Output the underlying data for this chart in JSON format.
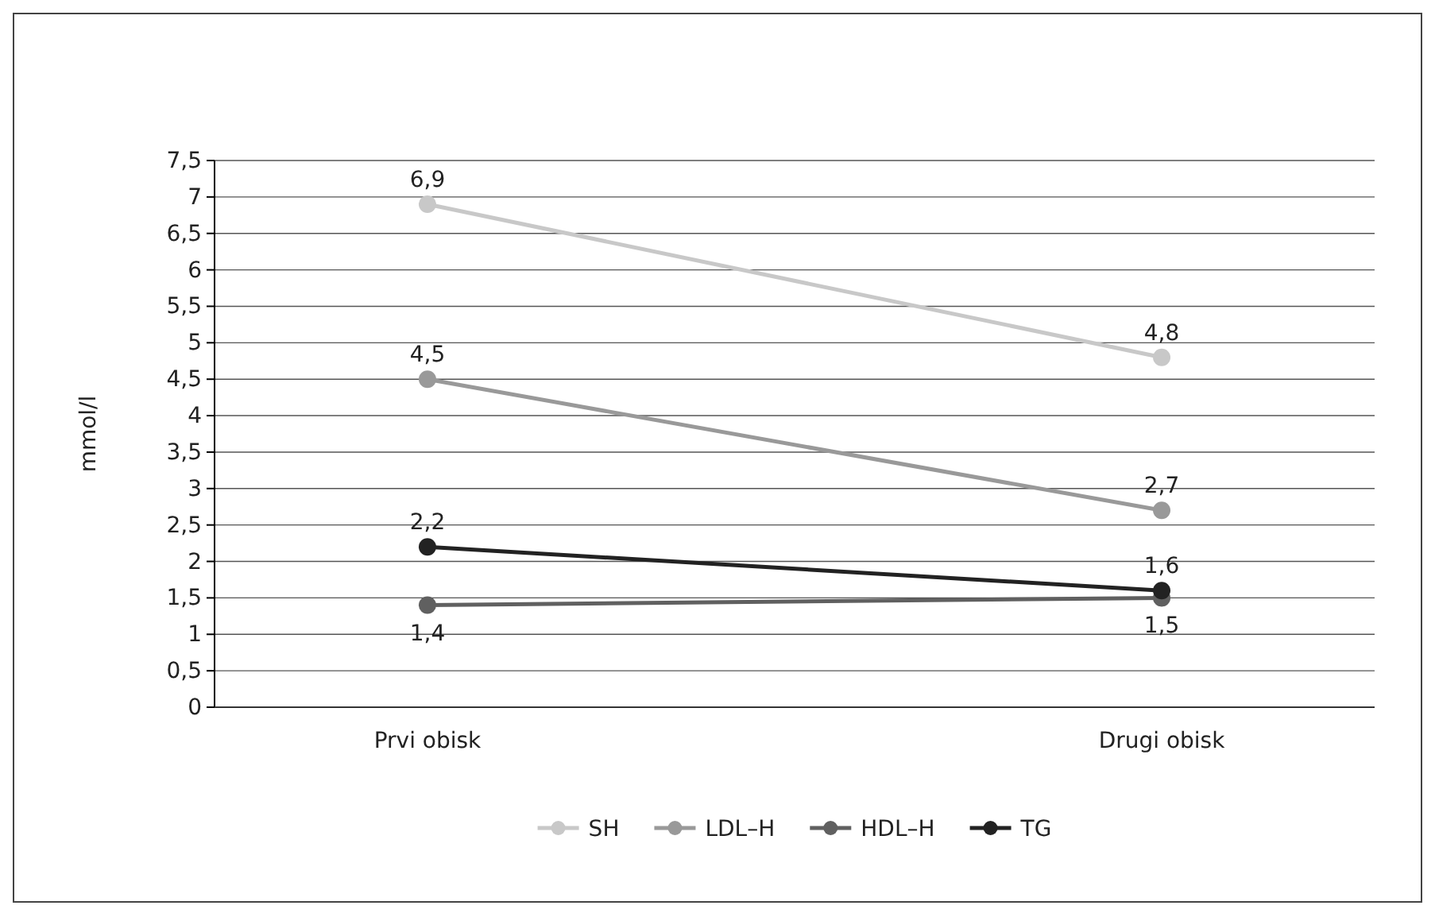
{
  "chart_data": {
    "type": "line",
    "ylabel": "mmol/l",
    "categories": [
      "Prvi obisk",
      "Drugi obisk"
    ],
    "series": [
      {
        "name": "SH",
        "color": "#c8c8c8",
        "values": [
          6.9,
          4.8
        ],
        "value_labels": [
          "6,9",
          "4,8"
        ]
      },
      {
        "name": "LDL–H",
        "color": "#999999",
        "values": [
          4.5,
          2.7
        ],
        "value_labels": [
          "4,5",
          "2,7"
        ]
      },
      {
        "name": "HDL–H",
        "color": "#606060",
        "values": [
          1.4,
          1.5
        ],
        "value_labels": [
          "1,4",
          "1,5"
        ]
      },
      {
        "name": "TG",
        "color": "#222222",
        "values": [
          2.2,
          1.6
        ],
        "value_labels": [
          "2,2",
          "1,6"
        ]
      }
    ],
    "ylim": [
      0,
      7.5
    ],
    "yticks": [
      0,
      {
        "value": 0.5,
        "label": "0,5"
      },
      1,
      {
        "value": 1.5,
        "label": "1,5"
      },
      2,
      {
        "value": 2.5,
        "label": "2,5"
      },
      3,
      {
        "value": 3.5,
        "label": "3,5"
      },
      4,
      {
        "value": 4.5,
        "label": "4,5"
      },
      5,
      {
        "value": 5.5,
        "label": "5,5"
      },
      6,
      {
        "value": 6.5,
        "label": "6,5"
      },
      7,
      {
        "value": 7.5,
        "label": "7,5"
      }
    ],
    "grid": "y",
    "legend": "bottom",
    "marker": "circle",
    "line_style": "solid"
  }
}
